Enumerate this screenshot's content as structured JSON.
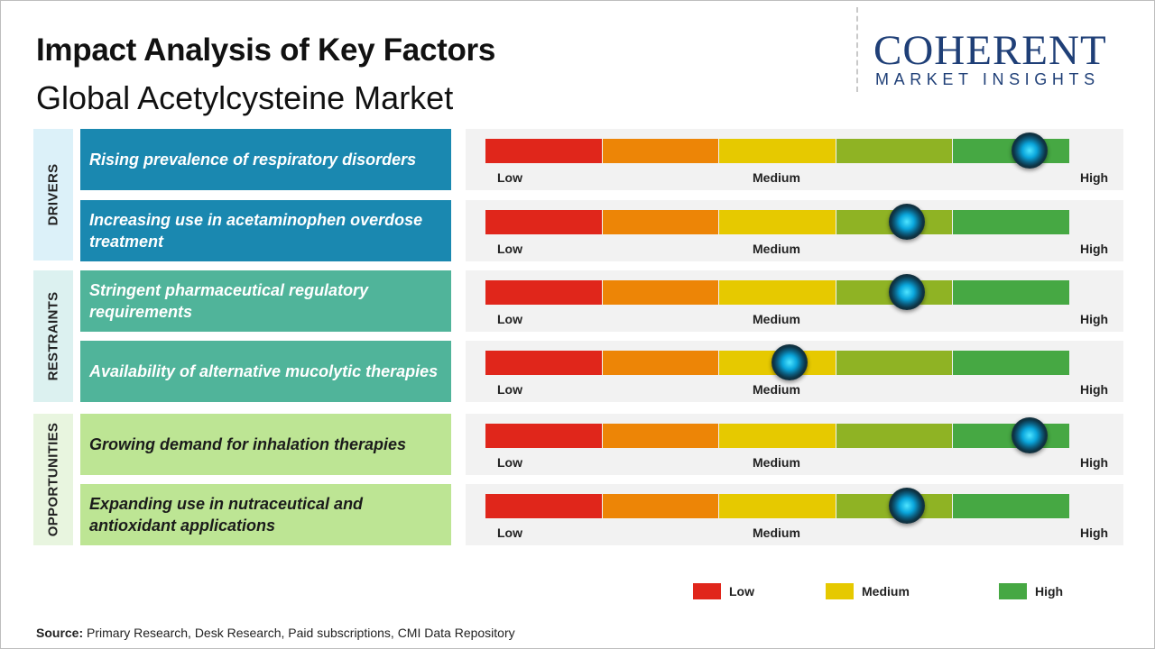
{
  "header": {
    "title": "Impact Analysis of Key Factors",
    "subtitle": "Global Acetylcysteine Market"
  },
  "logo": {
    "word": "COHERENT",
    "tagline": "MARKET INSIGHTS"
  },
  "scale": {
    "low_label": "Low",
    "medium_label": "Medium",
    "high_label": "High",
    "segment_colors": [
      "#e0261b",
      "#ed8506",
      "#e6c900",
      "#8fb324",
      "#46a843"
    ]
  },
  "chart_data": {
    "type": "table",
    "scale_min": 0,
    "scale_max": 1,
    "categories": [
      {
        "name": "DRIVERS",
        "box_color": "#dcf1f9",
        "factor_color": "#1a88b0",
        "text_color": "#ffffff",
        "factors": [
          {
            "label": "Rising prevalence of respiratory disorders",
            "impact": 0.93
          },
          {
            "label": "Increasing use in acetaminophen overdose treatment",
            "impact": 0.72
          }
        ]
      },
      {
        "name": "RESTRAINTS",
        "box_color": "#dcf1f0",
        "factor_color": "#50b49a",
        "text_color": "#ffffff",
        "factors": [
          {
            "label": "Stringent pharmaceutical regulatory requirements",
            "impact": 0.72
          },
          {
            "label": "Availability of alternative mucolytic therapies",
            "impact": 0.52
          }
        ]
      },
      {
        "name": "OPPORTUNITIES",
        "box_color": "#e8f5df",
        "factor_color": "#bde594",
        "text_color": "#1b1b1b",
        "factors": [
          {
            "label": "Growing demand for inhalation therapies",
            "impact": 0.93
          },
          {
            "label": "Expanding use in nutraceutical and antioxidant applications",
            "impact": 0.72
          }
        ]
      }
    ]
  },
  "legend": [
    {
      "label": "Low",
      "color": "#e0261b"
    },
    {
      "label": "Medium",
      "color": "#e6c900"
    },
    {
      "label": "High",
      "color": "#46a843"
    }
  ],
  "source": {
    "prefix": "Source:",
    "text": " Primary Research, Desk Research, Paid subscriptions, CMI Data Repository"
  }
}
